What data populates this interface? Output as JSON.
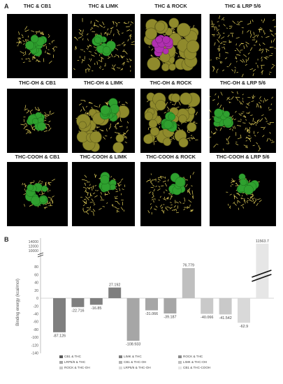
{
  "panel_a_label": "A",
  "panel_b_label": "B",
  "thumbnails": [
    {
      "title": "THC & CB1",
      "yellow": 0.45,
      "green": "center",
      "accent": "green"
    },
    {
      "title": "THC & LIMK",
      "yellow": 0.85,
      "green": "center",
      "accent": "green"
    },
    {
      "title": "THC & ROCK",
      "yellow": 0.6,
      "green": "none",
      "accent": "magenta"
    },
    {
      "title": "THC & LRP 5/6",
      "yellow": 1.0,
      "green": "none",
      "accent": "none"
    },
    {
      "title": "THC-OH & CB1",
      "yellow": 0.25,
      "green": "center",
      "accent": "green"
    },
    {
      "title": "THC-OH & LIMK",
      "yellow": 0.7,
      "green": "top",
      "accent": "green"
    },
    {
      "title": "THC-OH & ROCK",
      "yellow": 0.7,
      "green": "center",
      "accent": "green"
    },
    {
      "title": "THC-OH & LRP 5/6",
      "yellow": 1.0,
      "green": "left",
      "accent": "green"
    },
    {
      "title": "THC-COOH & CB1",
      "yellow": 0.3,
      "green": "center",
      "accent": "green"
    },
    {
      "title": "THC-COOH & LIMK",
      "yellow": 0.55,
      "green": "top",
      "accent": "green"
    },
    {
      "title": "THC-COOH & ROCK",
      "yellow": 0.6,
      "green": "top",
      "accent": "green"
    },
    {
      "title": "THC-COOH & LRP 5/6",
      "yellow": 0.35,
      "green": "top",
      "accent": "green"
    }
  ],
  "chart_data": {
    "type": "bar",
    "ylabel": "Binding energy (kcal/mol)",
    "ylim": [
      -140,
      100
    ],
    "upper_ticks": [
      "14000",
      "12000",
      "10000"
    ],
    "lower_ticks": [
      80,
      60,
      40,
      20,
      0,
      -20,
      -40,
      -60,
      -80,
      -100,
      -120,
      -140
    ],
    "axis_break": true,
    "grid": false,
    "legend_position": "bottom",
    "bars": [
      {
        "label": "CB1 & THC",
        "value": -87.126,
        "value_label": "-87.126",
        "color": "#7f7f7f"
      },
      {
        "label": "LIMK & THC",
        "value": -22.716,
        "value_label": "-22.716",
        "color": "#7f7f7f"
      },
      {
        "label": "ROCK & THC",
        "value": -16.85,
        "value_label": "-16.85",
        "color": "#7f7f7f"
      },
      {
        "label": "LRP5/6 & THC",
        "value": 27.192,
        "value_label": "27.192",
        "color": "#7f7f7f"
      },
      {
        "label": "CB1 & THC-OH",
        "value": -108.933,
        "value_label": "-108.933",
        "color": "#a6a6a6"
      },
      {
        "label": "LIMK & THC-OH",
        "value": -31.066,
        "value_label": "-31.066",
        "color": "#a6a6a6"
      },
      {
        "label": "ROCK & THC-OH",
        "value": -39.187,
        "value_label": "-39.187",
        "color": "#a6a6a6"
      },
      {
        "label": "LRP5/6 & THC-OH",
        "value": 76.779,
        "value_label": "76.779",
        "color": "#bfbfbf"
      },
      {
        "label": "CB1 & THC-COOH",
        "value": -40.066,
        "value_label": "-40.066",
        "color": "#c9c9c9"
      },
      {
        "label": "LIMK & THC-OH",
        "value": -41.542,
        "value_label": "-41.542",
        "color": "#c9c9c9"
      },
      {
        "label": "CB1 & THC-COOH",
        "value": -62.9,
        "value_label": "-62.9",
        "color": "#d9d9d9"
      },
      {
        "label": "CB1 & THC-COOH",
        "value": 11563.7,
        "value_label": "11563.7",
        "color": "#e6e6e6"
      }
    ],
    "legend": [
      {
        "label": "CB1 & THC",
        "color": "#595959"
      },
      {
        "label": "LIMK & THC",
        "color": "#7f7f7f"
      },
      {
        "label": "ROCK & THC",
        "color": "#8c8c8c"
      },
      {
        "label": "LRP5/6 & THC",
        "color": "#a6a6a6"
      },
      {
        "label": "CB1 & THC-OH",
        "color": "#b3b3b3"
      },
      {
        "label": "LIMK & THC-OH",
        "color": "#bfbfbf"
      },
      {
        "label": "ROCK & THC-OH",
        "color": "#c9c9c9"
      },
      {
        "label": "LRP5/6 & THC-OH",
        "color": "#d9d9d9"
      },
      {
        "label": "CB1 & THC-COOH",
        "color": "#e6e6e6"
      }
    ]
  }
}
